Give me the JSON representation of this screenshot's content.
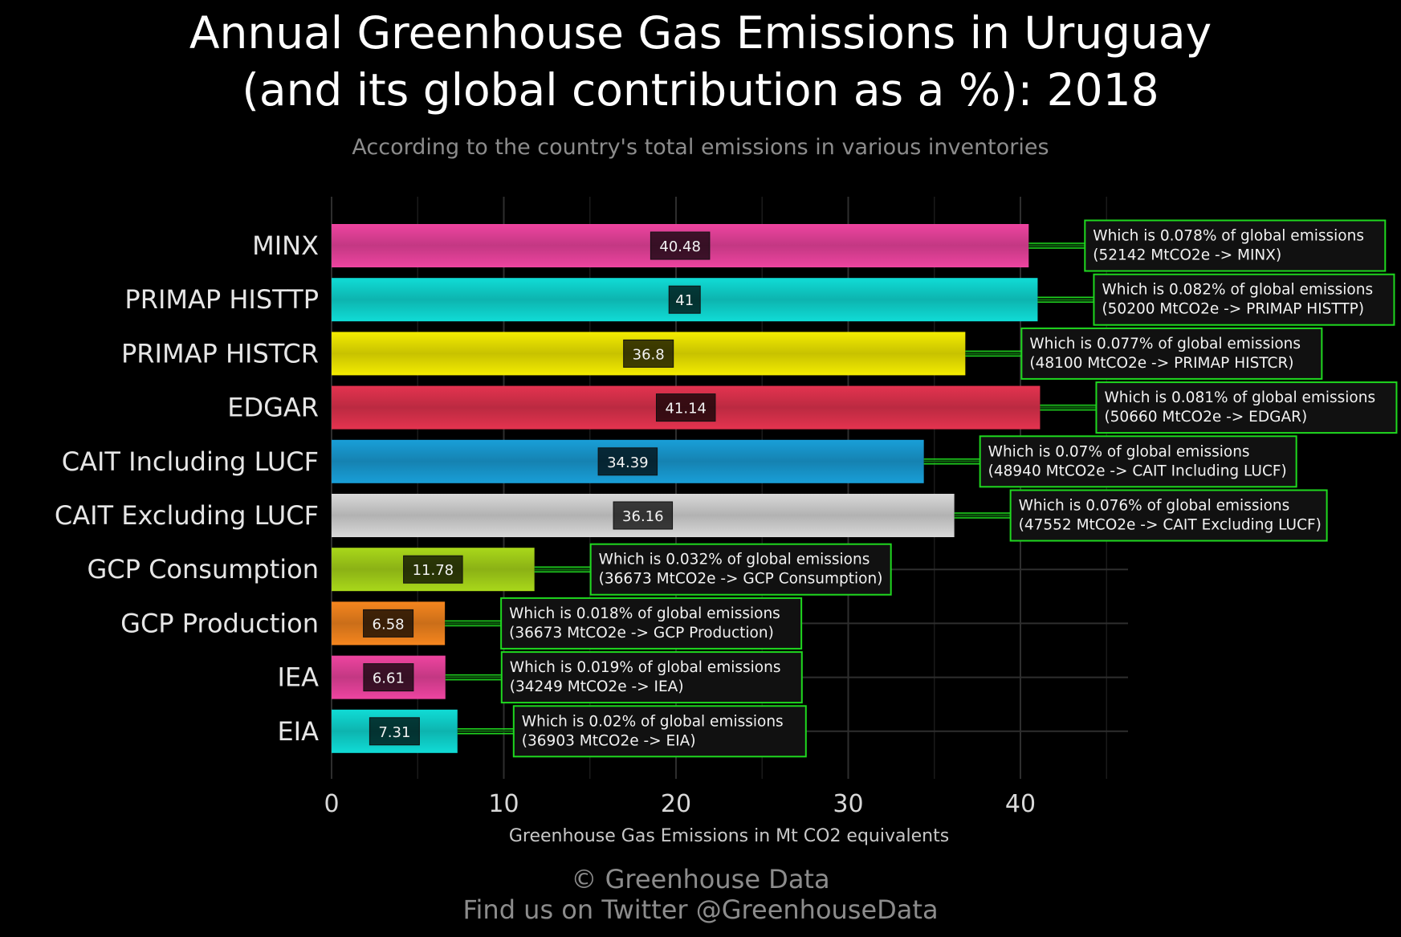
{
  "title_line1": "Annual Greenhouse Gas Emissions in Uruguay",
  "title_line2": "(and its global contribution as a %): 2018",
  "subtitle": "According to the country's total emissions in various inventories",
  "footer_line1": "© Greenhouse Data",
  "footer_line2": "Find us on Twitter @GreenhouseData",
  "chart_data": {
    "type": "bar",
    "orientation": "horizontal",
    "xlabel": "Greenhouse Gas Emissions in Mt CO2 equivalents",
    "xlim": [
      0,
      46
    ],
    "xticks": [
      0,
      10,
      20,
      30,
      40
    ],
    "grid": true,
    "bars": [
      {
        "category": "MINX",
        "value": 40.48,
        "value_label": "40.48",
        "color": "#ee44a0",
        "note_line1": "Which is 0.078% of global emissions",
        "note_line2": "(52142 MtCO2e -> MINX)"
      },
      {
        "category": "PRIMAP HISTTP",
        "value": 41,
        "value_label": "41",
        "color": "#10dcd6",
        "note_line1": "Which is 0.082% of global emissions",
        "note_line2": "(50200 MtCO2e -> PRIMAP HISTTP)"
      },
      {
        "category": "PRIMAP HISTCR",
        "value": 36.8,
        "value_label": "36.8",
        "color": "#f4ec00",
        "note_line1": "Which is 0.077% of global emissions",
        "note_line2": "(48100 MtCO2e -> PRIMAP HISTCR)"
      },
      {
        "category": "EDGAR",
        "value": 41.14,
        "value_label": "41.14",
        "color": "#e4334f",
        "note_line1": "Which is 0.081% of global emissions",
        "note_line2": "(50660 MtCO2e -> EDGAR)"
      },
      {
        "category": "CAIT Including LUCF",
        "value": 34.39,
        "value_label": "34.39",
        "color": "#199fd8",
        "note_line1": "Which is 0.07% of global emissions",
        "note_line2": "(48940 MtCO2e -> CAIT Including LUCF)"
      },
      {
        "category": "CAIT Excluding LUCF",
        "value": 36.16,
        "value_label": "36.16",
        "color": "#d9d9d9",
        "note_line1": "Which is 0.076% of global emissions",
        "note_line2": "(47552 MtCO2e -> CAIT Excluding LUCF)"
      },
      {
        "category": "GCP Consumption",
        "value": 11.78,
        "value_label": "11.78",
        "color": "#a9d81a",
        "note_line1": "Which is 0.032% of global emissions",
        "note_line2": "(36673 MtCO2e -> GCP Consumption)"
      },
      {
        "category": "GCP Production",
        "value": 6.58,
        "value_label": "6.58",
        "color": "#f6861e",
        "note_line1": "Which is 0.018% of global emissions",
        "note_line2": "(36673 MtCO2e -> GCP Production)"
      },
      {
        "category": "IEA",
        "value": 6.61,
        "value_label": "6.61",
        "color": "#ee44a0",
        "note_line1": "Which is 0.019% of global emissions",
        "note_line2": "(34249 MtCO2e -> IEA)"
      },
      {
        "category": "EIA",
        "value": 7.31,
        "value_label": "7.31",
        "color": "#10dcd6",
        "note_line1": "Which is 0.02% of global emissions",
        "note_line2": "(36903 MtCO2e -> EIA)"
      }
    ]
  }
}
